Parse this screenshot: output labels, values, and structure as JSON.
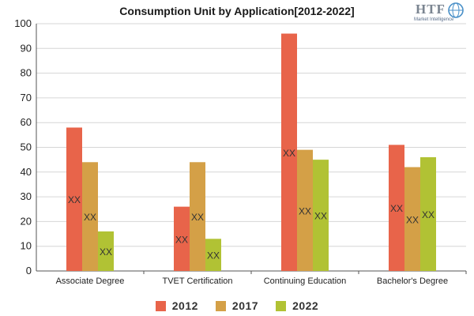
{
  "chart_data": {
    "type": "bar",
    "title": "Consumption Unit by  Application[2012-2022]",
    "categories": [
      "Associate Degree",
      "TVET Certification",
      "Continuing Education",
      "Bachelor's Degree"
    ],
    "series": [
      {
        "name": "2012",
        "color": "#e8644a",
        "values": [
          58,
          26,
          96,
          51
        ],
        "labels": [
          "XX",
          "XX",
          "XX",
          "XX"
        ]
      },
      {
        "name": "2017",
        "color": "#d4a047",
        "values": [
          44,
          44,
          49,
          42
        ],
        "labels": [
          "XX",
          "XX",
          "XX",
          "XX"
        ]
      },
      {
        "name": "2022",
        "color": "#b1c234",
        "values": [
          16,
          13,
          45,
          46
        ],
        "labels": [
          "XX",
          "XX",
          "XX",
          "XX"
        ]
      }
    ],
    "ylim": [
      0,
      100
    ],
    "yticks": [
      0,
      10,
      20,
      30,
      40,
      50,
      60,
      70,
      80,
      90,
      100
    ],
    "grid": true,
    "legend_position": "bottom"
  },
  "logo": {
    "text": "HTF",
    "subtext": "Market Intelligence"
  }
}
